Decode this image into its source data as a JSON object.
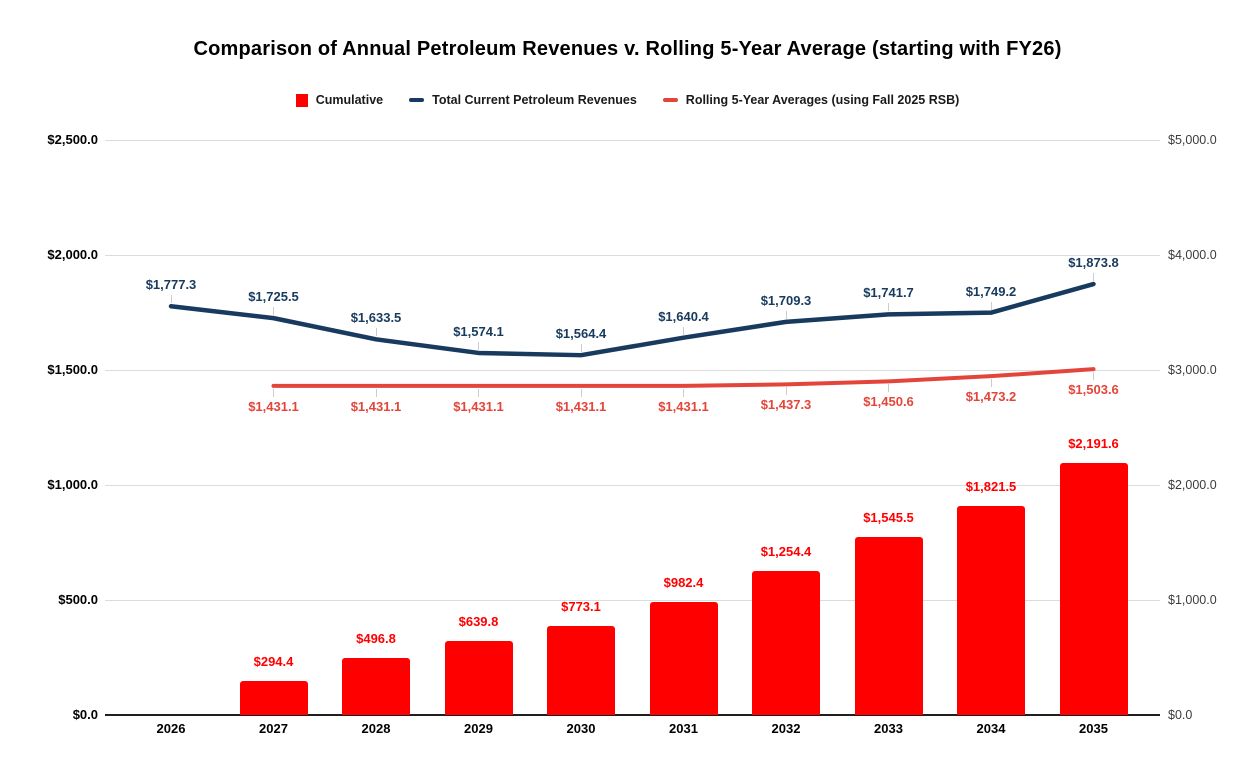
{
  "title": "Comparison of Annual Petroleum Revenues v. Rolling 5-Year Average (starting with FY26)",
  "colors": {
    "bar_red": "#ff0000",
    "revenues_navy": "#173a5e",
    "rolling_red": "#e3453a",
    "grid": "#dcdcdc",
    "axis_line": "#1f1f1f",
    "right_axis_text": "#3c3c3c"
  },
  "legend": {
    "items": [
      {
        "label": "Cumulative",
        "marker": "square",
        "color": "#ff0000"
      },
      {
        "label": "Total Current Petroleum Revenues",
        "marker": "dash",
        "color": "#173a5e"
      },
      {
        "label": "Rolling 5-Year Averages (using Fall 2025 RSB)",
        "marker": "dash",
        "color": "#e3453a"
      }
    ]
  },
  "chart_data": {
    "type": "combo",
    "categories": [
      "2026",
      "2027",
      "2028",
      "2029",
      "2030",
      "2031",
      "2032",
      "2033",
      "2034",
      "2035"
    ],
    "left_axis": {
      "range": [
        0,
        2500
      ],
      "tick_labels": [
        "$0.0",
        "$500.0",
        "$1,000.0",
        "$1,500.0",
        "$2,000.0",
        "$2,500.0"
      ]
    },
    "right_axis": {
      "range": [
        0,
        5000
      ],
      "tick_labels": [
        "$0.0",
        "$1,000.0",
        "$2,000.0",
        "$3,000.0",
        "$4,000.0",
        "$5,000.0"
      ]
    },
    "grid": true,
    "legend_position": "top",
    "series": [
      {
        "name": "Cumulative",
        "type": "bar",
        "axis": "right",
        "color": "#ff0000",
        "values": [
          null,
          294.4,
          496.8,
          639.8,
          773.1,
          982.4,
          1254.4,
          1545.5,
          1821.5,
          2191.6
        ],
        "labels": [
          null,
          "$294.4",
          "$496.8",
          "$639.8",
          "$773.1",
          "$982.4",
          "$1,254.4",
          "$1,545.5",
          "$1,821.5",
          "$2,191.6"
        ]
      },
      {
        "name": "Total Current Petroleum Revenues",
        "type": "line",
        "axis": "left",
        "color": "#173a5e",
        "values": [
          1777.3,
          1725.5,
          1633.5,
          1574.1,
          1564.4,
          1640.4,
          1709.3,
          1741.7,
          1749.2,
          1873.8
        ],
        "labels": [
          "$1,777.3",
          "$1,725.5",
          "$1,633.5",
          "$1,574.1",
          "$1,564.4",
          "$1,640.4",
          "$1,709.3",
          "$1,741.7",
          "$1,749.2",
          "$1,873.8"
        ]
      },
      {
        "name": "Rolling 5-Year Averages (using Fall 2025 RSB)",
        "type": "line",
        "axis": "left",
        "color": "#e3453a",
        "values": [
          null,
          1431.1,
          1431.1,
          1431.1,
          1431.1,
          1431.1,
          1437.3,
          1450.6,
          1473.2,
          1503.6
        ],
        "labels": [
          null,
          "$1,431.1",
          "$1,431.1",
          "$1,431.1",
          "$1,431.1",
          "$1,431.1",
          "$1,437.3",
          "$1,450.6",
          "$1,473.2",
          "$1,503.6"
        ]
      }
    ]
  }
}
